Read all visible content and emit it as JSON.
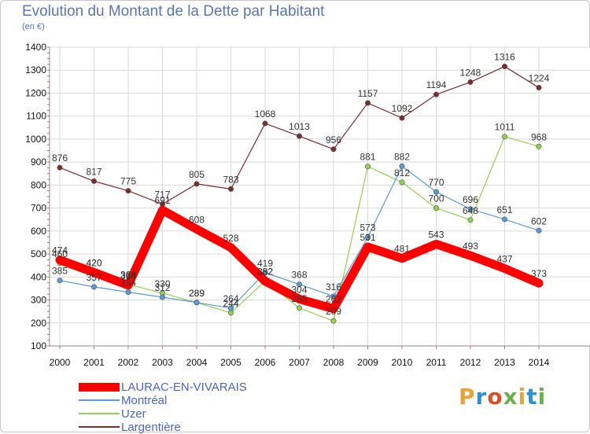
{
  "chart_data": {
    "type": "line",
    "title": "Evolution du Montant de la Dette par Habitant",
    "subtitle": "(en €)",
    "x": [
      "2000",
      "2001",
      "2002",
      "2003",
      "2004",
      "2005",
      "2006",
      "2007",
      "2008",
      "2009",
      "2010",
      "2011",
      "2012",
      "2013",
      "2014"
    ],
    "ylim": [
      100,
      1400
    ],
    "yticks": [
      100,
      200,
      300,
      400,
      500,
      600,
      700,
      800,
      900,
      1000,
      1100,
      1200,
      1300,
      1400
    ],
    "grid": true,
    "legend_placement": "bottom-left",
    "series": [
      {
        "name": "LAURAC-EN-VIVARAIS",
        "color": "#ff0000",
        "values": [
          474,
          420,
          364,
          691,
          608,
          528,
          382,
          304,
          262,
          531,
          481,
          543,
          493,
          437,
          373
        ]
      },
      {
        "name": "Montréal",
        "color": "#5b9bd5",
        "values": [
          385,
          357,
          334,
          312,
          289,
          264,
          419,
          368,
          316,
          573,
          882,
          770,
          696,
          651,
          602
        ]
      },
      {
        "name": "Uzer",
        "color": "#92d050",
        "values": [
          460,
          420,
          368,
          330,
          289,
          244,
          382,
          265,
          209,
          881,
          812,
          700,
          648,
          1011,
          968
        ]
      },
      {
        "name": "Largentière",
        "color": "#7b2c2c",
        "values": [
          876,
          817,
          775,
          717,
          805,
          783,
          1068,
          1013,
          956,
          1157,
          1092,
          1194,
          1248,
          1316,
          1224
        ]
      }
    ]
  },
  "brand": {
    "text": "Proxiti"
  }
}
